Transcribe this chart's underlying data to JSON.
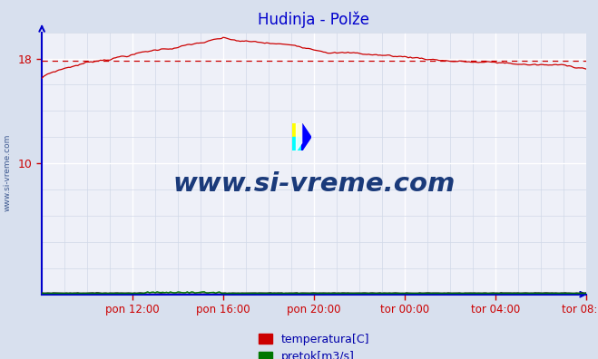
{
  "title": "Hudinja - Polže",
  "title_color": "#0000cc",
  "bg_color": "#d8e0ee",
  "plot_bg_color": "#eef0f8",
  "grid_major_color": "#ffffff",
  "grid_minor_color": "#d0d8e8",
  "label_color": "#0000aa",
  "ylabel_ticks": [
    10,
    18
  ],
  "ylim": [
    0,
    20
  ],
  "xlim": [
    0,
    288
  ],
  "x_tick_positions": [
    48,
    96,
    144,
    192,
    240,
    288
  ],
  "x_tick_labels": [
    "pon 12:00",
    "pon 16:00",
    "pon 20:00",
    "tor 00:00",
    "tor 04:00",
    "tor 08:00"
  ],
  "temp_color": "#cc0000",
  "flow_color": "#007700",
  "height_color": "#333333",
  "avg_line_color": "#cc0000",
  "avg_line_value": 17.85,
  "watermark_text": "www.si-vreme.com",
  "watermark_color": "#1a3a7a",
  "legend_labels": [
    "temperatura[C]",
    "pretok[m3/s]"
  ],
  "legend_colors": [
    "#cc0000",
    "#007700"
  ],
  "spine_color": "#0000cc",
  "tick_color": "#cc0000",
  "figsize": [
    6.59,
    3.96
  ],
  "dpi": 100
}
